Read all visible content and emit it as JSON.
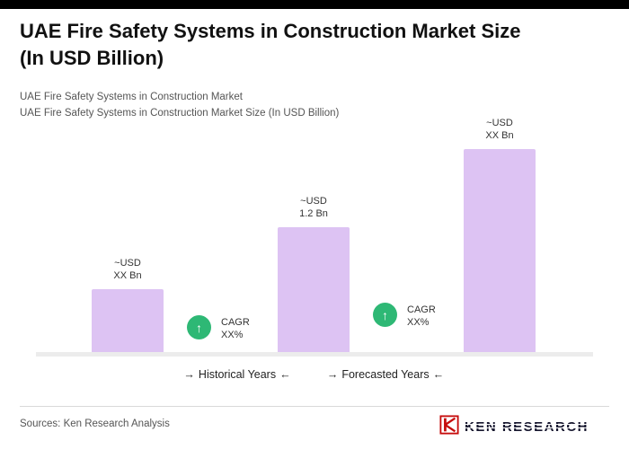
{
  "header": {
    "title": "UAE Fire Safety Systems in Construction Market Size\n(In USD Billion)",
    "subtitle1": "UAE Fire Safety Systems in Construction Market",
    "subtitle2": "UAE Fire Safety Systems in Construction Market Size (In USD Billion)"
  },
  "chart_data": {
    "type": "bar",
    "title": "UAE Fire Safety Systems in Construction Market Size (In USD Billion)",
    "bars": [
      {
        "label": "~USD\nXX Bn",
        "value": 0.6
      },
      {
        "label": "~USD\n1.2 Bn",
        "value": 1.2
      },
      {
        "label": "~USD\nXX Bn",
        "value": 1.95
      }
    ],
    "ylim": [
      0,
      2.0
    ],
    "bar_color": "#ddc3f3",
    "badge_color": "#2eb875",
    "badges": [
      {
        "icon": "↑",
        "label": "CAGR\nXX%"
      },
      {
        "icon": "↑",
        "label": "CAGR\nXX%"
      }
    ],
    "xlabel": "",
    "ylabel": "",
    "grid": false,
    "legend": "none"
  },
  "axis": {
    "arrow_right": "→",
    "arrow_left": "←",
    "historical_label": "Historical Years",
    "forecasted_label": "Forecasted Years"
  },
  "footer": {
    "sources": "Sources: Ken Research Analysis",
    "logo_text": "KEN RESEARCH"
  }
}
